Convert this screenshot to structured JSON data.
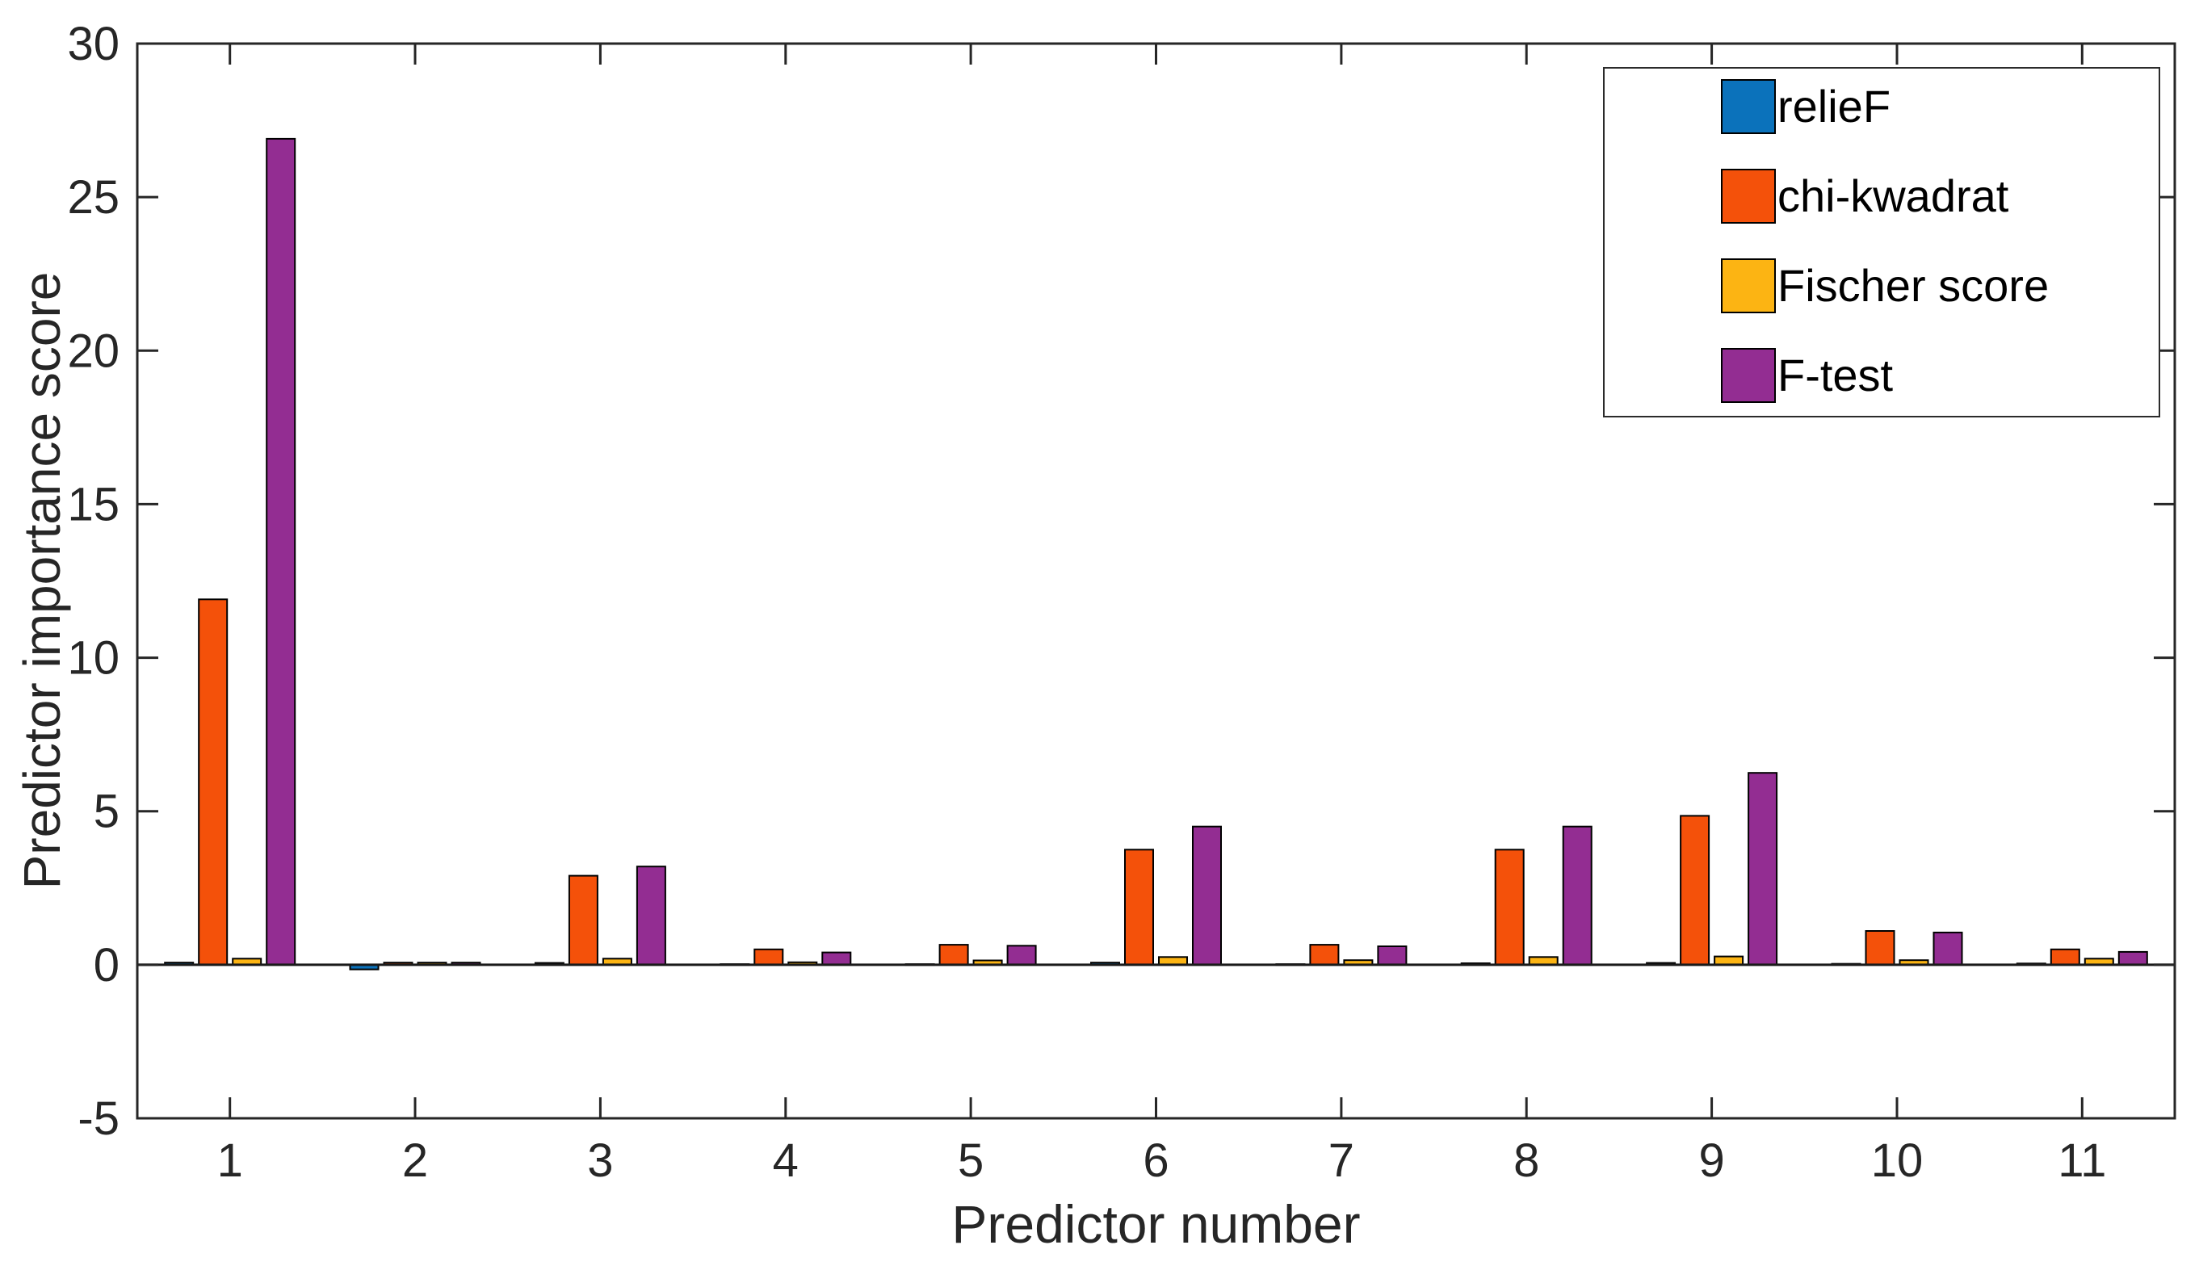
{
  "figure": {
    "xlabel": "Predictor number",
    "ylabel": "Predictor importance score"
  },
  "chart_data": {
    "type": "bar",
    "title": "",
    "xlabel": "Predictor number",
    "ylabel": "Predictor importance score",
    "categories": [
      "1",
      "2",
      "3",
      "4",
      "5",
      "6",
      "7",
      "8",
      "9",
      "10",
      "11"
    ],
    "series": [
      {
        "name": "relieF",
        "color": "#0B72BB",
        "values": [
          0.07,
          -0.15,
          0.06,
          0.02,
          0.02,
          0.07,
          0.02,
          0.05,
          0.06,
          0.03,
          0.04
        ]
      },
      {
        "name": "chi-kwadrat",
        "color": "#F4510A",
        "values": [
          11.9,
          0.07,
          2.9,
          0.5,
          0.65,
          3.75,
          0.65,
          3.75,
          4.85,
          1.1,
          0.5
        ]
      },
      {
        "name": "Fischer score",
        "color": "#FCB413",
        "values": [
          0.2,
          0.07,
          0.2,
          0.08,
          0.14,
          0.25,
          0.15,
          0.25,
          0.27,
          0.15,
          0.2
        ]
      },
      {
        "name": "F-test",
        "color": "#932D92",
        "values": [
          26.9,
          0.07,
          3.2,
          0.4,
          0.62,
          4.5,
          0.6,
          4.5,
          6.25,
          1.05,
          0.42
        ]
      }
    ],
    "ylim": [
      -5,
      30
    ],
    "yticks": [
      -5,
      0,
      5,
      10,
      15,
      20,
      25,
      30
    ],
    "grid": false,
    "legend_position": "top-right",
    "bar_edge_color": "#000000",
    "axis_color": "#262626",
    "background": "#FFFFFF"
  }
}
